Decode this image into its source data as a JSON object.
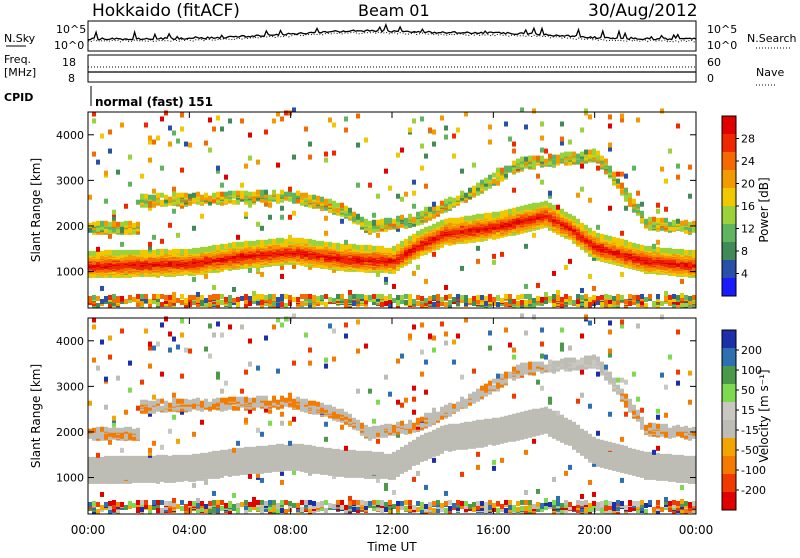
{
  "header": {
    "site": "Hokkaido (fitACF)",
    "beam": "Beam 01",
    "date": "30/Aug/2012"
  },
  "strip": {
    "nsky_label": "N.Sky",
    "nsearch_label": "N.Search",
    "nsky_tick_top": "10^5",
    "nsky_tick_bottom": "10^0",
    "freq_label_1": "Freq.",
    "freq_label_2": "[MHz]",
    "freq_tick_top": "18",
    "freq_tick_bottom": "8",
    "nave_label": "Nave",
    "nave_tick_top": "60",
    "nave_tick_bottom": "0",
    "cpid_label": "CPID",
    "cpid_text": "normal (fast) 151"
  },
  "colors": {
    "power_scale": [
      "#1a1aff",
      "#2a4fa8",
      "#3f8a55",
      "#5fb45f",
      "#9bd23c",
      "#f0c800",
      "#f39a00",
      "#f46a00",
      "#f02800",
      "#e00000"
    ],
    "velocity_scale": [
      "#e00000",
      "#f03a00",
      "#f47a00",
      "#f2a500",
      "#bdbdb5",
      "#c8c8c0",
      "#7ed850",
      "#4a9a4a",
      "#2d6fb0",
      "#1c2fa8"
    ],
    "ground_scatter": "#bdbdb5"
  },
  "chart_data": [
    {
      "type": "heatmap",
      "parameter": "Power",
      "ylabel": "Slant Range [km]",
      "xlabel": "Time UT",
      "x_ticks": [
        "00:00",
        "04:00",
        "08:00",
        "12:00",
        "16:00",
        "20:00",
        "00:00"
      ],
      "y_ticks": [
        "1000",
        "2000",
        "3000",
        "4000"
      ],
      "ylim": [
        200,
        4500
      ],
      "xlim_hours": [
        0,
        24
      ],
      "colorbar_label": "Power [dB]",
      "colorbar_ticks": [
        "4",
        "8",
        "12",
        "16",
        "20",
        "24",
        "28"
      ],
      "zlim": [
        0,
        30
      ],
      "main_band_center_km": [
        [
          0,
          1100
        ],
        [
          4,
          1150
        ],
        [
          6,
          1300
        ],
        [
          8,
          1400
        ],
        [
          10,
          1250
        ],
        [
          12,
          1200
        ],
        [
          13,
          1550
        ],
        [
          14,
          1800
        ],
        [
          16,
          1950
        ],
        [
          18,
          2200
        ],
        [
          19,
          1900
        ],
        [
          20,
          1500
        ],
        [
          22,
          1200
        ],
        [
          24,
          1100
        ]
      ],
      "upper_band_center_km": [
        [
          2,
          2500
        ],
        [
          5,
          2550
        ],
        [
          8,
          2600
        ],
        [
          10,
          2300
        ],
        [
          11,
          1900
        ],
        [
          13,
          2100
        ],
        [
          15,
          2650
        ],
        [
          17,
          3300
        ],
        [
          20,
          3500
        ],
        [
          22,
          2000
        ],
        [
          24,
          1900
        ]
      ]
    },
    {
      "type": "heatmap",
      "parameter": "Velocity",
      "ylabel": "Slant Range [km]",
      "xlabel": "Time UT",
      "x_ticks": [
        "00:00",
        "04:00",
        "08:00",
        "12:00",
        "16:00",
        "20:00",
        "00:00"
      ],
      "y_ticks": [
        "1000",
        "2000",
        "3000",
        "4000"
      ],
      "ylim": [
        200,
        4500
      ],
      "xlim_hours": [
        0,
        24
      ],
      "colorbar_label": "Velocity [m s⁻¹]",
      "colorbar_ticks": [
        "200",
        "100",
        "50",
        "15",
        "-15",
        "-50",
        "-100",
        "-200"
      ],
      "zlim": [
        -250,
        250
      ]
    }
  ]
}
